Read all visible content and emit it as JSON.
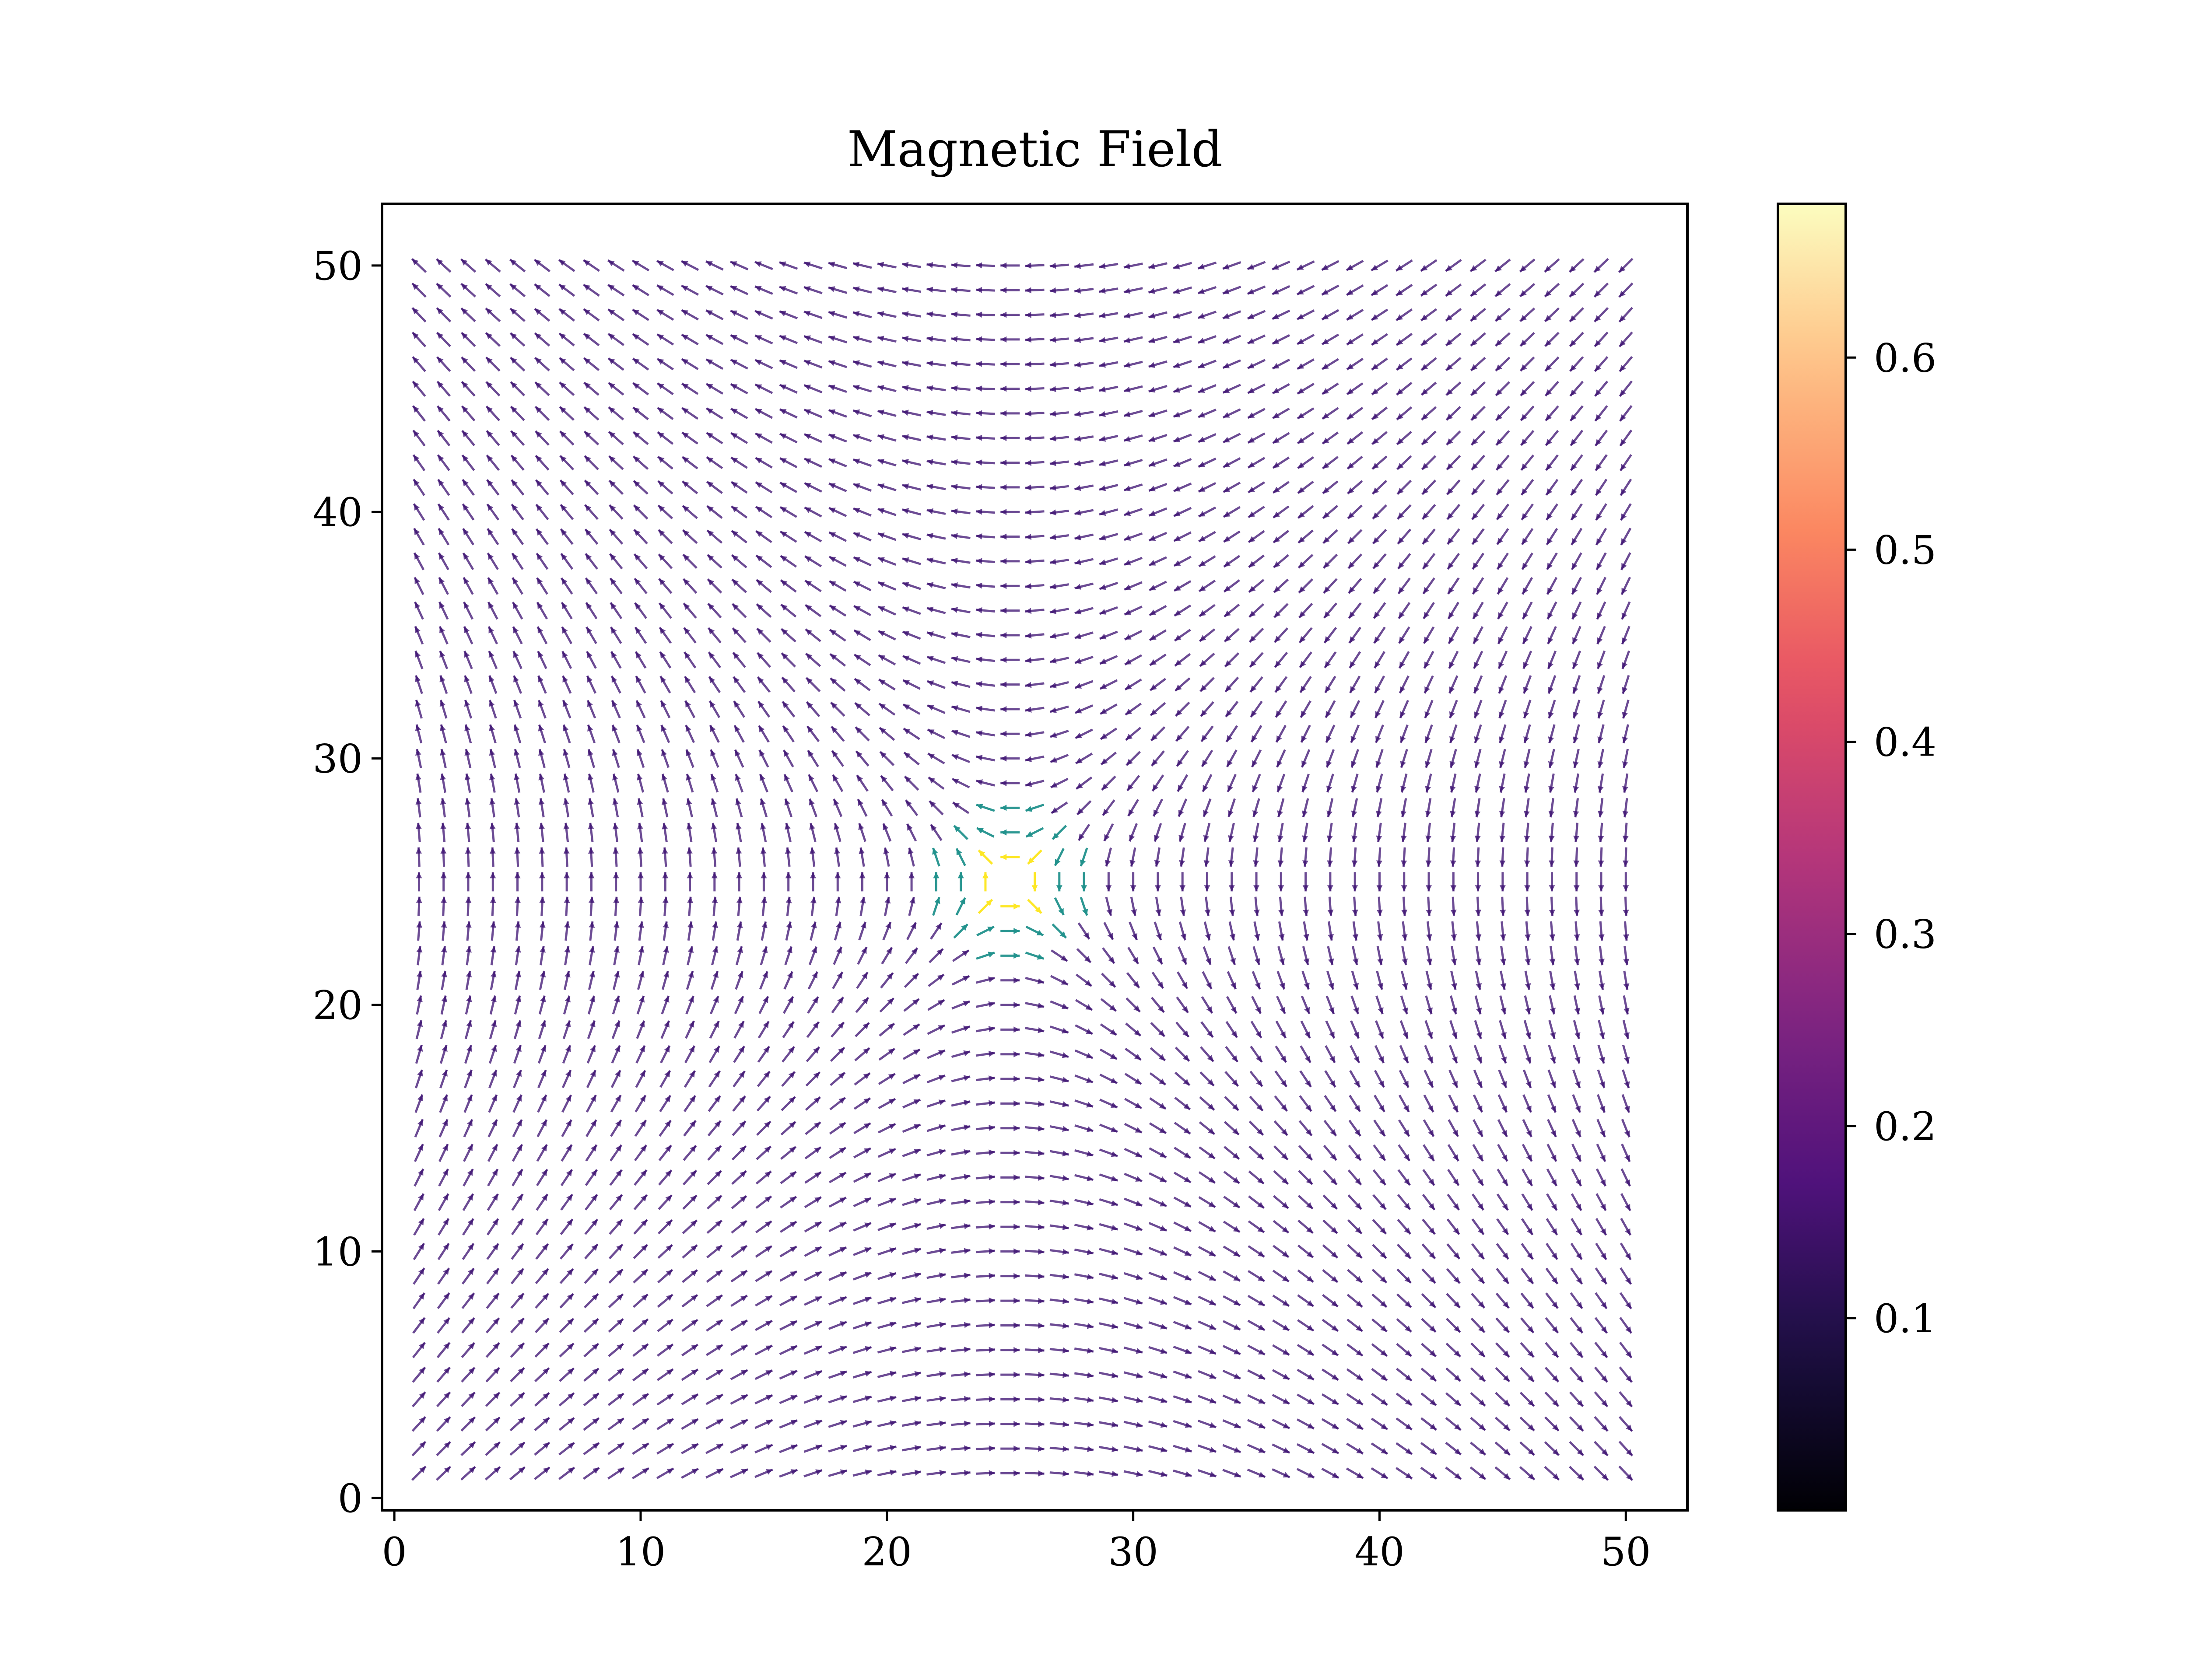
{
  "chart_data": [
    {
      "type": "heatmap",
      "title": "Magnetic Field",
      "xlabel": "",
      "ylabel": "",
      "xlim": [
        -0.5,
        52.5
      ],
      "ylim": [
        52.5,
        -0.5
      ],
      "y_axis_inverted": true,
      "x_ticks": [
        0,
        10,
        20,
        30,
        40,
        50
      ],
      "x_tick_labels": [
        "0",
        "10",
        "20",
        "30",
        "40",
        "50"
      ],
      "y_ticks": [
        0,
        10,
        20,
        30,
        40,
        50
      ],
      "y_tick_labels": [
        "0",
        "10",
        "20",
        "30",
        "40",
        "50"
      ],
      "image_extent": {
        "x": [
          -0.5,
          49.5
        ],
        "y": [
          -0.5,
          49.5
        ]
      },
      "grid": false,
      "colormap": "magma",
      "field_model": {
        "band_center_row": 24,
        "band_peak": 0.68,
        "band_width_rows": 1.2,
        "background_peak": 0.22,
        "background_width_rows": 6,
        "vortex_center": [
          25,
          25
        ]
      },
      "quiver": {
        "grid_step": 1,
        "start": 1,
        "end": 50,
        "rotation": "clockwise about vortex_center",
        "vortex_core_color": "#21918c",
        "vortex_hot_color": "#fde725",
        "arrow_color": "#3b0f70"
      }
    },
    {
      "type": "colorbar",
      "colormap": "magma",
      "range": [
        0.0,
        0.68
      ],
      "ticks": [
        0.1,
        0.2,
        0.3,
        0.4,
        0.5,
        0.6
      ],
      "tick_labels": [
        "0.1",
        "0.2",
        "0.3",
        "0.4",
        "0.5",
        "0.6"
      ]
    }
  ]
}
